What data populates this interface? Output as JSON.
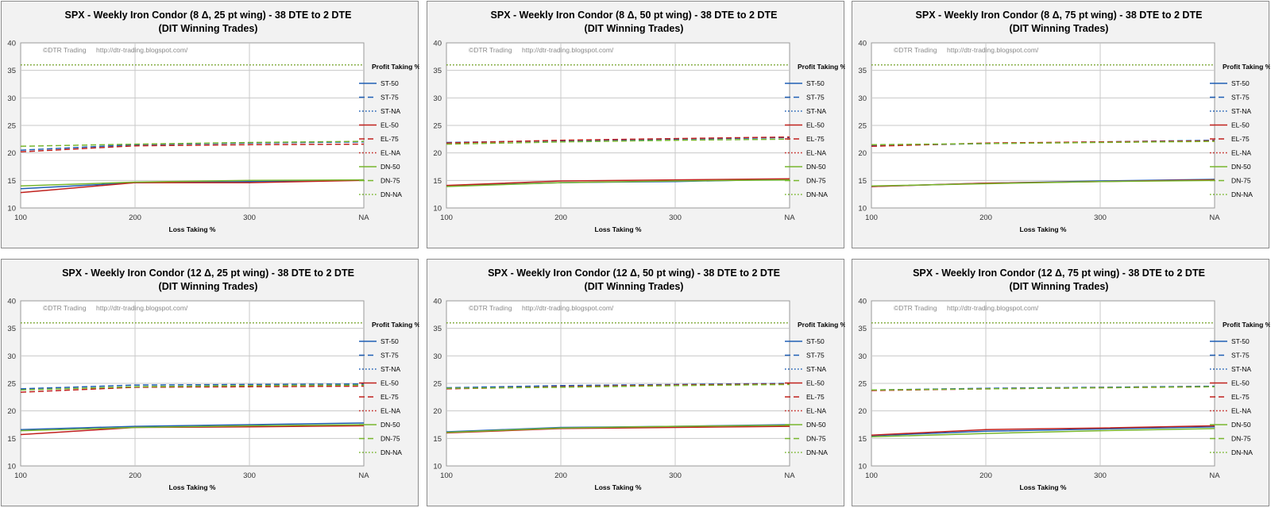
{
  "watermark": {
    "copyright": "©DTR Trading",
    "url": "http://dtr-trading.blogspot.com/"
  },
  "styles": {
    "ST": {
      "color": "#1f5fb5"
    },
    "EL": {
      "color": "#c0201c"
    },
    "DN": {
      "color": "#77b62d"
    },
    "dash": {
      "50": "solid",
      "75": "dashed",
      "NA": "dotted"
    }
  },
  "chart_data": [
    {
      "type": "line",
      "title": "SPX - Weekly Iron Condor (8 Δ, 25 pt wing) - 38 DTE to 2 DTE",
      "subtitle": "(DIT Winning Trades)",
      "xlabel": "Loss Taking %",
      "ylabel": "",
      "categories": [
        "100",
        "200",
        "300",
        "NA"
      ],
      "ylim": [
        10,
        40
      ],
      "yticks": [
        10,
        15,
        20,
        25,
        30,
        35,
        40
      ],
      "grid": true,
      "legend_title": "Profit Taking %",
      "legend_position": "right",
      "series": [
        {
          "name": "ST-50",
          "values": [
            13.5,
            14.6,
            14.8,
            15.1
          ]
        },
        {
          "name": "ST-75",
          "values": [
            20.5,
            21.5,
            21.8,
            22.0
          ]
        },
        {
          "name": "ST-NA",
          "values": [
            36.0,
            36.0,
            36.0,
            36.0
          ]
        },
        {
          "name": "EL-50",
          "values": [
            12.8,
            14.6,
            14.6,
            15.0
          ]
        },
        {
          "name": "EL-75",
          "values": [
            20.2,
            21.3,
            21.5,
            21.6
          ]
        },
        {
          "name": "EL-NA",
          "values": [
            36.0,
            36.0,
            36.0,
            36.0
          ]
        },
        {
          "name": "DN-50",
          "values": [
            14.0,
            14.7,
            15.0,
            15.1
          ]
        },
        {
          "name": "DN-75",
          "values": [
            21.2,
            21.6,
            21.9,
            22.1
          ]
        },
        {
          "name": "DN-NA",
          "values": [
            36.0,
            36.0,
            36.0,
            36.0
          ]
        }
      ]
    },
    {
      "type": "line",
      "title": "SPX - Weekly Iron Condor (8 Δ, 50 pt wing) - 38 DTE to 2 DTE",
      "subtitle": "(DIT Winning Trades)",
      "xlabel": "Loss Taking %",
      "ylabel": "",
      "categories": [
        "100",
        "200",
        "300",
        "NA"
      ],
      "ylim": [
        10,
        40
      ],
      "yticks": [
        10,
        15,
        20,
        25,
        30,
        35,
        40
      ],
      "grid": true,
      "legend_title": "Profit Taking %",
      "legend_position": "right",
      "series": [
        {
          "name": "ST-50",
          "values": [
            14.0,
            14.6,
            14.8,
            15.2
          ]
        },
        {
          "name": "ST-75",
          "values": [
            21.9,
            22.2,
            22.5,
            22.8
          ]
        },
        {
          "name": "ST-NA",
          "values": [
            36.0,
            36.0,
            36.0,
            36.0
          ]
        },
        {
          "name": "EL-50",
          "values": [
            14.1,
            14.9,
            15.1,
            15.3
          ]
        },
        {
          "name": "EL-75",
          "values": [
            21.8,
            22.3,
            22.6,
            22.9
          ]
        },
        {
          "name": "EL-NA",
          "values": [
            36.0,
            36.0,
            36.0,
            36.0
          ]
        },
        {
          "name": "DN-50",
          "values": [
            13.9,
            14.6,
            14.9,
            15.1
          ]
        },
        {
          "name": "DN-75",
          "values": [
            21.6,
            22.0,
            22.3,
            22.5
          ]
        },
        {
          "name": "DN-NA",
          "values": [
            36.0,
            36.0,
            36.0,
            36.0
          ]
        }
      ]
    },
    {
      "type": "line",
      "title": "SPX - Weekly Iron Condor (8 Δ, 75 pt wing) - 38 DTE to 2 DTE",
      "subtitle": "(DIT Winning Trades)",
      "xlabel": "Loss Taking %",
      "ylabel": "",
      "categories": [
        "100",
        "200",
        "300",
        "NA"
      ],
      "ylim": [
        10,
        40
      ],
      "yticks": [
        10,
        15,
        20,
        25,
        30,
        35,
        40
      ],
      "grid": true,
      "legend_title": "Profit Taking %",
      "legend_position": "right",
      "series": [
        {
          "name": "ST-50",
          "values": [
            13.9,
            14.5,
            14.9,
            15.2
          ]
        },
        {
          "name": "ST-75",
          "values": [
            21.3,
            21.7,
            22.0,
            22.3
          ]
        },
        {
          "name": "ST-NA",
          "values": [
            36.0,
            36.0,
            36.0,
            36.0
          ]
        },
        {
          "name": "EL-50",
          "values": [
            13.9,
            14.5,
            14.8,
            15.1
          ]
        },
        {
          "name": "EL-75",
          "values": [
            21.2,
            21.8,
            22.0,
            22.2
          ]
        },
        {
          "name": "EL-NA",
          "values": [
            36.0,
            36.0,
            36.0,
            36.0
          ]
        },
        {
          "name": "DN-50",
          "values": [
            14.0,
            14.4,
            14.8,
            15.0
          ]
        },
        {
          "name": "DN-75",
          "values": [
            21.5,
            21.7,
            21.9,
            22.1
          ]
        },
        {
          "name": "DN-NA",
          "values": [
            36.0,
            36.0,
            36.0,
            36.0
          ]
        }
      ]
    },
    {
      "type": "line",
      "title": "SPX - Weekly Iron Condor (12 Δ, 25 pt wing) - 38 DTE to 2 DTE",
      "subtitle": "(DIT Winning Trades)",
      "xlabel": "Loss Taking %",
      "ylabel": "",
      "categories": [
        "100",
        "200",
        "300",
        "NA"
      ],
      "ylim": [
        10,
        40
      ],
      "yticks": [
        10,
        15,
        20,
        25,
        30,
        35,
        40
      ],
      "grid": true,
      "legend_title": "Profit Taking %",
      "legend_position": "right",
      "series": [
        {
          "name": "ST-50",
          "values": [
            16.6,
            17.2,
            17.5,
            17.8
          ]
        },
        {
          "name": "ST-75",
          "values": [
            24.0,
            24.7,
            24.8,
            24.9
          ]
        },
        {
          "name": "ST-NA",
          "values": [
            36.0,
            36.0,
            36.0,
            36.0
          ]
        },
        {
          "name": "EL-50",
          "values": [
            15.7,
            17.0,
            17.1,
            17.3
          ]
        },
        {
          "name": "EL-75",
          "values": [
            23.4,
            24.3,
            24.4,
            24.5
          ]
        },
        {
          "name": "EL-NA",
          "values": [
            36.0,
            36.0,
            36.0,
            36.0
          ]
        },
        {
          "name": "DN-50",
          "values": [
            16.4,
            17.0,
            17.3,
            17.5
          ]
        },
        {
          "name": "DN-75",
          "values": [
            23.8,
            24.4,
            24.6,
            24.7
          ]
        },
        {
          "name": "DN-NA",
          "values": [
            36.0,
            36.0,
            36.0,
            36.0
          ]
        }
      ]
    },
    {
      "type": "line",
      "title": "SPX - Weekly Iron Condor (12 Δ, 50 pt wing) - 38 DTE to 2 DTE",
      "subtitle": "(DIT Winning Trades)",
      "xlabel": "Loss Taking %",
      "ylabel": "",
      "categories": [
        "100",
        "200",
        "300",
        "NA"
      ],
      "ylim": [
        10,
        40
      ],
      "yticks": [
        10,
        15,
        20,
        25,
        30,
        35,
        40
      ],
      "grid": true,
      "legend_title": "Profit Taking %",
      "legend_position": "right",
      "series": [
        {
          "name": "ST-50",
          "values": [
            16.2,
            17.0,
            17.2,
            17.5
          ]
        },
        {
          "name": "ST-75",
          "values": [
            24.2,
            24.6,
            24.8,
            25.0
          ]
        },
        {
          "name": "ST-NA",
          "values": [
            36.0,
            36.0,
            36.0,
            36.0
          ]
        },
        {
          "name": "EL-50",
          "values": [
            16.0,
            16.8,
            17.0,
            17.2
          ]
        },
        {
          "name": "EL-75",
          "values": [
            24.0,
            24.4,
            24.7,
            24.9
          ]
        },
        {
          "name": "EL-NA",
          "values": [
            36.0,
            36.0,
            36.0,
            36.0
          ]
        },
        {
          "name": "DN-50",
          "values": [
            16.1,
            16.9,
            17.2,
            17.4
          ]
        },
        {
          "name": "DN-75",
          "values": [
            24.1,
            24.3,
            24.6,
            24.8
          ]
        },
        {
          "name": "DN-NA",
          "values": [
            36.0,
            36.0,
            36.0,
            36.0
          ]
        }
      ]
    },
    {
      "type": "line",
      "title": "SPX - Weekly Iron Condor (12 Δ, 75 pt wing) - 38 DTE to 2 DTE",
      "subtitle": "(DIT Winning Trades)",
      "xlabel": "Loss Taking %",
      "ylabel": "",
      "categories": [
        "100",
        "200",
        "300",
        "NA"
      ],
      "ylim": [
        10,
        40
      ],
      "yticks": [
        10,
        15,
        20,
        25,
        30,
        35,
        40
      ],
      "grid": true,
      "legend_title": "Profit Taking %",
      "legend_position": "right",
      "series": [
        {
          "name": "ST-50",
          "values": [
            15.5,
            16.3,
            16.7,
            17.1
          ]
        },
        {
          "name": "ST-75",
          "values": [
            23.8,
            24.1,
            24.3,
            24.5
          ]
        },
        {
          "name": "ST-NA",
          "values": [
            36.0,
            36.0,
            36.0,
            36.0
          ]
        },
        {
          "name": "EL-50",
          "values": [
            15.6,
            16.6,
            16.9,
            17.3
          ]
        },
        {
          "name": "EL-75",
          "values": [
            23.7,
            24.0,
            24.2,
            24.4
          ]
        },
        {
          "name": "EL-NA",
          "values": [
            36.0,
            36.0,
            36.0,
            36.0
          ]
        },
        {
          "name": "DN-50",
          "values": [
            15.3,
            15.9,
            16.4,
            16.8
          ]
        },
        {
          "name": "DN-75",
          "values": [
            23.8,
            24.0,
            24.2,
            24.4
          ]
        },
        {
          "name": "DN-NA",
          "values": [
            36.0,
            36.0,
            36.0,
            36.0
          ]
        }
      ]
    }
  ]
}
